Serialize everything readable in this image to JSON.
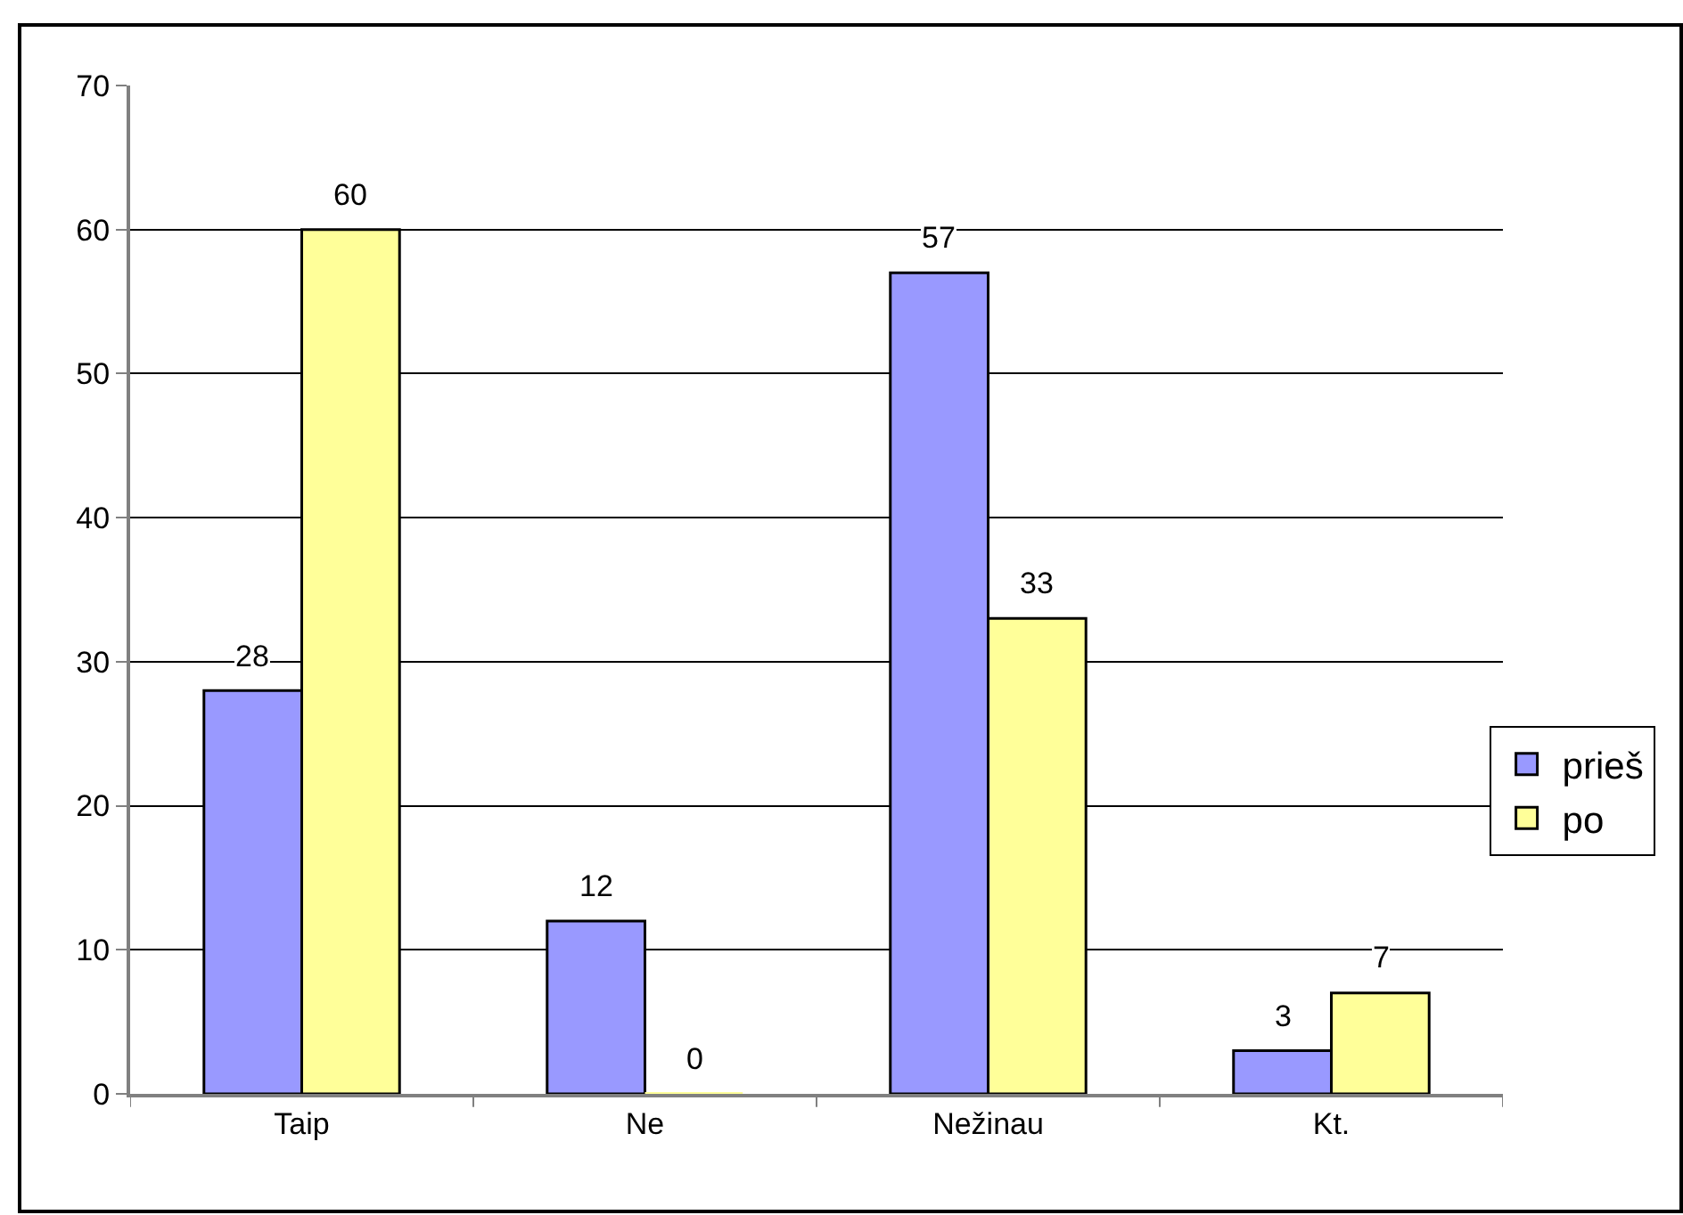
{
  "chart_data": {
    "type": "bar",
    "categories": [
      "Taip",
      "Ne",
      "Nežinau",
      "Kt."
    ],
    "series": [
      {
        "name": "prieš",
        "color": "#9999ff",
        "values": [
          28,
          12,
          57,
          3
        ]
      },
      {
        "name": "po",
        "color": "#ffff99",
        "values": [
          60,
          0,
          33,
          7
        ]
      }
    ],
    "ylim": [
      0,
      70
    ],
    "yticks": [
      0,
      10,
      20,
      30,
      40,
      50,
      60,
      70
    ],
    "grid": "y",
    "legend": "right",
    "data_labels": true
  }
}
